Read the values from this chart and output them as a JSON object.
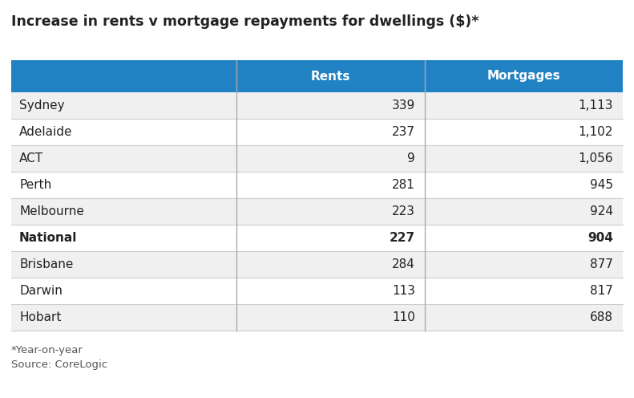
{
  "title": "Increase in rents v mortgage repayments for dwellings ($)*",
  "columns": [
    "Rents",
    "Mortgages"
  ],
  "rows": [
    {
      "city": "Sydney",
      "rents": "339",
      "mortgages": "1,113",
      "bold": false
    },
    {
      "city": "Adelaide",
      "rents": "237",
      "mortgages": "1,102",
      "bold": false
    },
    {
      "city": "ACT",
      "rents": "9",
      "mortgages": "1,056",
      "bold": false
    },
    {
      "city": "Perth",
      "rents": "281",
      "mortgages": "945",
      "bold": false
    },
    {
      "city": "Melbourne",
      "rents": "223",
      "mortgages": "924",
      "bold": false
    },
    {
      "city": "National",
      "rents": "227",
      "mortgages": "904",
      "bold": true
    },
    {
      "city": "Brisbane",
      "rents": "284",
      "mortgages": "877",
      "bold": false
    },
    {
      "city": "Darwin",
      "rents": "113",
      "mortgages": "817",
      "bold": false
    },
    {
      "city": "Hobart",
      "rents": "110",
      "mortgages": "688",
      "bold": false
    }
  ],
  "footer_lines": [
    "*Year-on-year",
    "Source: CoreLogic"
  ],
  "header_bg": "#2081c3",
  "header_text_color": "#ffffff",
  "row_bg_odd": "#f0f0f0",
  "row_bg_even": "#ffffff",
  "text_color": "#222222",
  "col_separator_color": "#888888",
  "border_color": "#cccccc",
  "title_fontsize": 12.5,
  "header_fontsize": 11,
  "cell_fontsize": 11,
  "footer_fontsize": 9.5,
  "figsize": [
    7.91,
    4.96
  ],
  "dpi": 100
}
